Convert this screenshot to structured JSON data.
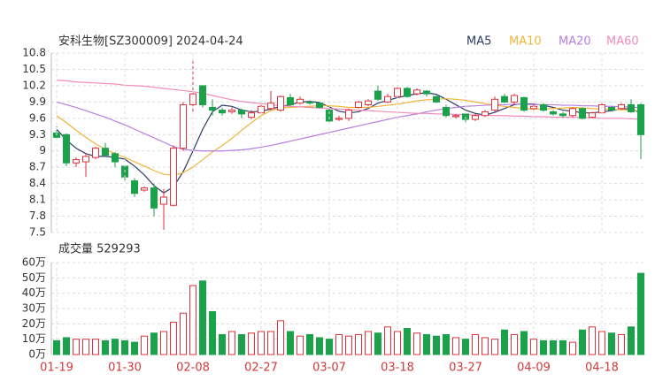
{
  "chart_data": [
    {
      "type": "candlestick",
      "title": "安科生物[SZ300009] 2024-04-24",
      "up_color": "#e0303a",
      "down_color": "#1aa14a",
      "open": [
        9.33,
        9.3,
        8.78,
        8.8,
        8.88,
        9.05,
        8.95,
        8.72,
        8.45,
        8.28,
        8.32,
        8.02,
        8.0,
        9.05,
        9.85,
        10.2,
        9.8,
        9.75,
        9.72,
        9.75,
        9.62,
        9.7,
        9.78,
        9.75,
        9.98,
        9.88,
        9.9,
        9.88,
        9.75,
        9.58,
        9.6,
        9.8,
        9.85,
        10.1,
        9.9,
        10.0,
        10.15,
        10.05,
        10.1,
        10.0,
        9.8,
        9.63,
        9.68,
        9.58,
        9.65,
        9.75,
        10.0,
        9.9,
        9.98,
        9.78,
        9.85,
        9.72,
        9.68,
        9.65,
        9.78,
        9.62,
        9.7,
        9.8,
        9.78,
        9.85,
        9.85
      ],
      "high": [
        9.45,
        9.32,
        8.88,
        8.95,
        9.08,
        9.15,
        8.98,
        8.75,
        8.5,
        8.35,
        8.4,
        8.3,
        9.1,
        9.9,
        10.65,
        10.2,
        9.95,
        9.8,
        9.8,
        9.78,
        9.75,
        9.85,
        10.1,
        10.02,
        10.05,
        10.0,
        9.93,
        9.9,
        9.78,
        9.65,
        9.78,
        9.92,
        9.95,
        10.2,
        10.05,
        10.18,
        10.18,
        10.15,
        10.12,
        10.02,
        9.85,
        9.68,
        9.7,
        9.68,
        9.75,
        10.0,
        10.05,
        10.05,
        10.0,
        9.85,
        9.88,
        9.75,
        9.72,
        9.8,
        9.8,
        9.72,
        9.88,
        9.82,
        9.88,
        9.95,
        9.88
      ],
      "low": [
        9.22,
        8.72,
        8.7,
        8.52,
        8.85,
        8.9,
        8.7,
        8.45,
        8.15,
        8.25,
        7.8,
        7.55,
        7.98,
        9.0,
        9.7,
        9.8,
        9.65,
        9.65,
        9.68,
        9.6,
        9.58,
        9.68,
        9.75,
        9.72,
        9.82,
        9.85,
        9.85,
        9.78,
        9.52,
        9.55,
        9.55,
        9.78,
        9.82,
        9.92,
        9.88,
        9.98,
        9.98,
        10.02,
        10.0,
        9.88,
        9.62,
        9.6,
        9.52,
        9.55,
        9.62,
        9.72,
        9.88,
        9.85,
        9.72,
        9.75,
        9.72,
        9.65,
        9.62,
        9.62,
        9.58,
        9.6,
        9.68,
        9.72,
        9.75,
        9.7,
        8.85
      ],
      "close": [
        9.25,
        8.78,
        8.84,
        8.9,
        9.05,
        8.92,
        8.8,
        8.52,
        8.22,
        8.32,
        7.95,
        8.15,
        9.05,
        9.85,
        10.05,
        9.85,
        9.75,
        9.7,
        9.75,
        9.68,
        9.7,
        9.82,
        9.88,
        10.0,
        9.85,
        9.95,
        9.88,
        9.8,
        9.55,
        9.6,
        9.75,
        9.9,
        9.92,
        9.95,
        10.0,
        10.15,
        10.0,
        10.12,
        10.05,
        9.9,
        9.65,
        9.65,
        9.58,
        9.65,
        9.72,
        9.95,
        9.9,
        10.02,
        9.75,
        9.82,
        9.75,
        9.68,
        9.65,
        9.78,
        9.6,
        9.7,
        9.85,
        9.75,
        9.85,
        9.72,
        9.3
      ],
      "series": [
        {
          "name": "MA5",
          "color": "#2e3a66",
          "values": [
            9.4,
            9.2,
            9.05,
            8.95,
            8.9,
            8.9,
            8.88,
            8.85,
            8.72,
            8.56,
            8.36,
            8.23,
            8.34,
            8.62,
            9.0,
            9.4,
            9.72,
            9.84,
            9.82,
            9.75,
            9.72,
            9.73,
            9.77,
            9.82,
            9.85,
            9.9,
            9.91,
            9.89,
            9.81,
            9.73,
            9.7,
            9.72,
            9.78,
            9.88,
            9.93,
            9.98,
            10.02,
            10.05,
            10.07,
            10.04,
            9.95,
            9.85,
            9.75,
            9.69,
            9.66,
            9.71,
            9.78,
            9.85,
            9.87,
            9.86,
            9.84,
            9.8,
            9.75,
            9.73,
            9.7,
            9.7,
            9.72,
            9.74,
            9.77,
            9.78,
            9.69
          ]
        },
        {
          "name": "MA10",
          "color": "#f2b43c",
          "values": [
            9.65,
            9.52,
            9.38,
            9.25,
            9.13,
            9.03,
            8.95,
            8.88,
            8.8,
            8.72,
            8.64,
            8.57,
            8.55,
            8.6,
            8.7,
            8.84,
            8.98,
            9.1,
            9.23,
            9.38,
            9.52,
            9.65,
            9.74,
            9.79,
            9.8,
            9.81,
            9.82,
            9.83,
            9.83,
            9.82,
            9.8,
            9.8,
            9.8,
            9.82,
            9.84,
            9.86,
            9.89,
            9.92,
            9.94,
            9.95,
            9.96,
            9.95,
            9.93,
            9.9,
            9.87,
            9.84,
            9.82,
            9.8,
            9.78,
            9.77,
            9.77,
            9.78,
            9.79,
            9.8,
            9.79,
            9.78,
            9.77,
            9.76,
            9.76,
            9.75,
            9.73
          ]
        },
        {
          "name": "MA20",
          "color": "#b87ee0",
          "values": [
            9.9,
            9.85,
            9.8,
            9.74,
            9.68,
            9.62,
            9.55,
            9.48,
            9.4,
            9.32,
            9.24,
            9.16,
            9.08,
            9.03,
            9.01,
            9.0,
            9.0,
            9.0,
            9.01,
            9.02,
            9.04,
            9.07,
            9.1,
            9.14,
            9.18,
            9.22,
            9.26,
            9.3,
            9.34,
            9.38,
            9.42,
            9.46,
            9.5,
            9.54,
            9.58,
            9.62,
            9.65,
            9.68,
            9.72,
            9.75,
            9.78,
            9.8,
            9.82,
            9.83,
            9.84,
            9.85,
            9.85,
            9.86,
            9.86,
            9.85,
            9.85,
            9.85,
            9.84,
            9.84,
            9.83,
            9.83,
            9.82,
            9.82,
            9.81,
            9.81,
            9.79
          ]
        },
        {
          "name": "MA60",
          "color": "#f08cba",
          "values": [
            10.3,
            10.29,
            10.27,
            10.26,
            10.25,
            10.24,
            10.23,
            10.21,
            10.2,
            10.19,
            10.17,
            10.15,
            10.13,
            10.11,
            10.09,
            10.06,
            10.02,
            9.98,
            9.94,
            9.91,
            9.89,
            9.87,
            9.85,
            9.83,
            9.82,
            9.81,
            9.8,
            9.79,
            9.78,
            9.77,
            9.76,
            9.75,
            9.74,
            9.73,
            9.72,
            9.71,
            9.7,
            9.69,
            9.69,
            9.68,
            9.68,
            9.67,
            9.67,
            9.66,
            9.66,
            9.65,
            9.65,
            9.64,
            9.64,
            9.63,
            9.63,
            9.62,
            9.62,
            9.62,
            9.61,
            9.61,
            9.6,
            9.6,
            9.6,
            9.59,
            9.58
          ]
        }
      ],
      "ylim": [
        7.5,
        10.8
      ],
      "yticks": [
        10.8,
        10.5,
        10.2,
        9.9,
        9.6,
        9.3,
        9,
        8.7,
        8.4,
        8.1,
        7.8,
        7.5
      ],
      "grid": true
    },
    {
      "type": "bar",
      "title": "成交量 529293",
      "categories": [
        "01-19",
        null,
        null,
        null,
        null,
        null,
        null,
        "01-30",
        null,
        null,
        null,
        null,
        null,
        null,
        "02-08",
        null,
        null,
        null,
        null,
        null,
        null,
        "02-27",
        null,
        null,
        null,
        null,
        null,
        null,
        "03-07",
        null,
        null,
        null,
        null,
        null,
        null,
        "03-18",
        null,
        null,
        null,
        null,
        null,
        null,
        "03-27",
        null,
        null,
        null,
        null,
        null,
        null,
        "04-09",
        null,
        null,
        null,
        null,
        null,
        null,
        "04-18",
        null,
        null,
        null,
        null
      ],
      "values": [
        9,
        11,
        10,
        10,
        10,
        9,
        10,
        9,
        8,
        12,
        14,
        15,
        21,
        27,
        45,
        48,
        28,
        13,
        15,
        13,
        14,
        15,
        15,
        22,
        15,
        12,
        13,
        11,
        10,
        13,
        12,
        13,
        15,
        14,
        18,
        15,
        17,
        14,
        13,
        12,
        13,
        11,
        10,
        13,
        11,
        10,
        16,
        13,
        15,
        10,
        9,
        9,
        9,
        8,
        16,
        18,
        15,
        14,
        13,
        18,
        53
      ],
      "ylim": [
        0,
        60
      ],
      "yticks": [
        {
          "value": 60,
          "label": "60万"
        },
        {
          "value": 50,
          "label": "50万"
        },
        {
          "value": 40,
          "label": "40万"
        },
        {
          "value": 30,
          "label": "30万"
        },
        {
          "value": 20,
          "label": "20万"
        },
        {
          "value": 10,
          "label": "10万"
        },
        {
          "value": 0,
          "label": "0万"
        }
      ],
      "grid": true
    }
  ]
}
